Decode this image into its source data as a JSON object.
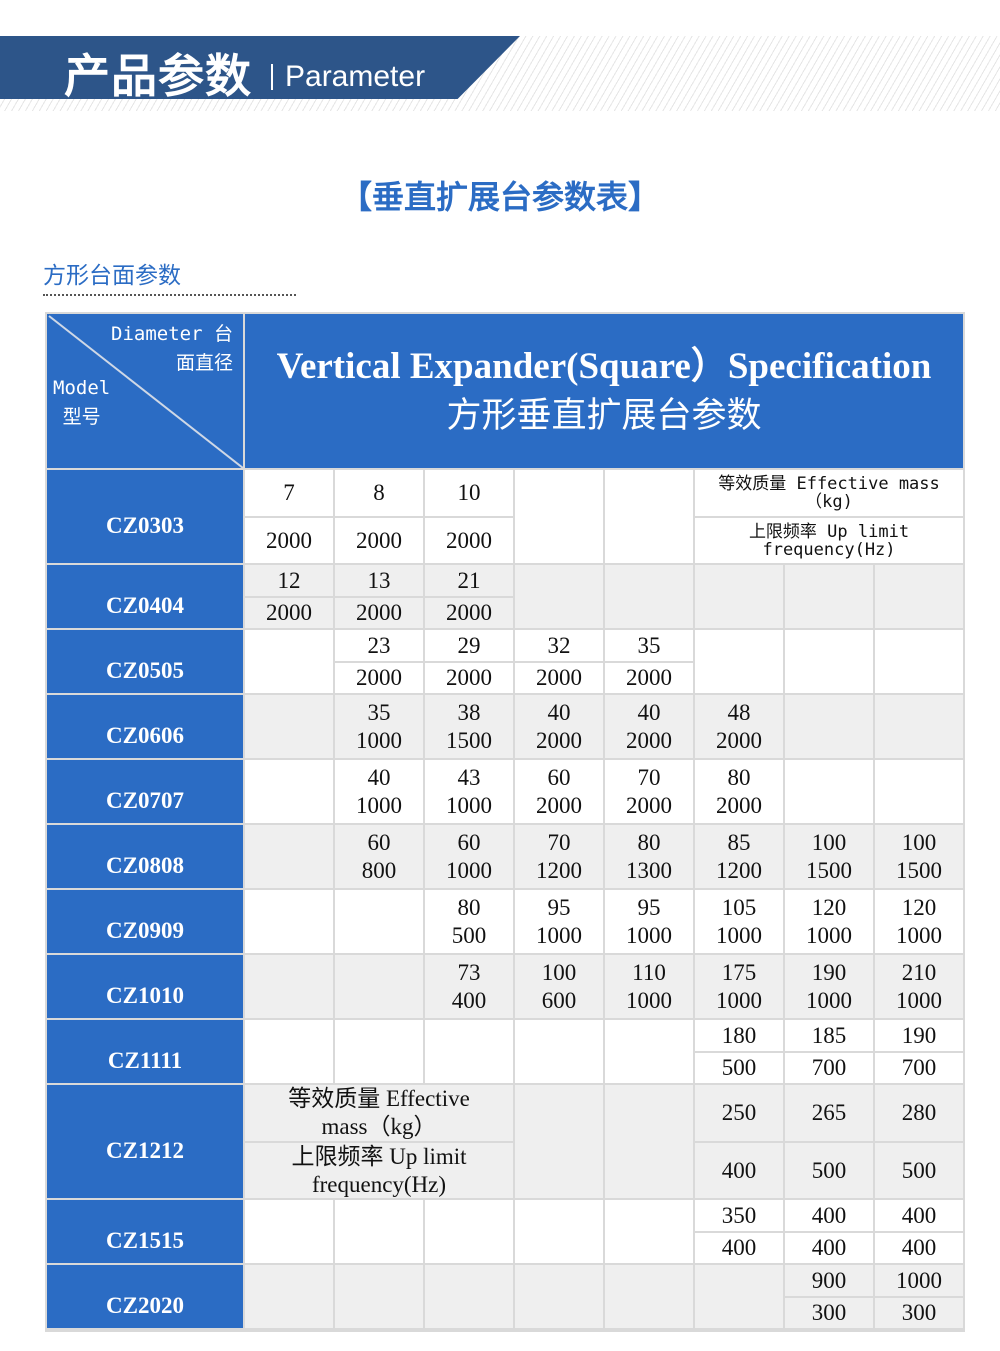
{
  "banner": {
    "title_cn": "产品参数",
    "title_en": "Parameter"
  },
  "title": "【垂直扩展台参数表】",
  "subtitle": "方形台面参数",
  "table": {
    "corner": {
      "diameter": "Diameter 台",
      "diameter2": "面直径",
      "model": "Model",
      "model2": "型号"
    },
    "heading_en": "Vertical Expander(Square）Specification",
    "heading_cn": "方形垂直扩展台参数",
    "legend": {
      "mass": "等效质量 Effective mass（kg）",
      "freq": "上限频率 Up limit frequency(Hz)"
    },
    "legend_small": {
      "mass": "等效质量 Effective mass（kg)",
      "freq": "上限频率 Up limit frequency(Hz)"
    },
    "rows": [
      {
        "model": "CZ0303",
        "split": true,
        "cells": [
          [
            "7",
            "2000"
          ],
          [
            "8",
            "2000"
          ],
          [
            "10",
            "2000"
          ],
          null,
          null,
          "legend"
        ]
      },
      {
        "model": "CZ0404",
        "split": true,
        "cells": [
          [
            "12",
            "2000"
          ],
          [
            "13",
            "2000"
          ],
          [
            "21",
            "2000"
          ],
          null,
          null,
          null,
          null,
          null
        ]
      },
      {
        "model": "CZ0505",
        "split": true,
        "cells": [
          null,
          [
            "23",
            "2000"
          ],
          [
            "29",
            "2000"
          ],
          [
            "32",
            "2000"
          ],
          [
            "35",
            "2000"
          ],
          null,
          null,
          null
        ]
      },
      {
        "model": "CZ0606",
        "split": false,
        "cells": [
          null,
          [
            "35",
            "1000"
          ],
          [
            "38",
            "1500"
          ],
          [
            "40",
            "2000"
          ],
          [
            "40",
            "2000"
          ],
          [
            "48",
            "2000"
          ],
          null,
          null
        ]
      },
      {
        "model": "CZ0707",
        "split": false,
        "cells": [
          null,
          [
            "40",
            "1000"
          ],
          [
            "43",
            "1000"
          ],
          [
            "60",
            "2000"
          ],
          [
            "70",
            "2000"
          ],
          [
            "80",
            "2000"
          ],
          null,
          null
        ]
      },
      {
        "model": "CZ0808",
        "split": false,
        "cells": [
          null,
          [
            "60",
            "800"
          ],
          [
            "60",
            "1000"
          ],
          [
            "70",
            "1200"
          ],
          [
            "80",
            "1300"
          ],
          [
            "85",
            "1200"
          ],
          [
            "100",
            "1500"
          ],
          [
            "100",
            "1500"
          ]
        ]
      },
      {
        "model": "CZ0909",
        "split": false,
        "cells": [
          null,
          null,
          [
            "80",
            "500"
          ],
          [
            "95",
            "1000"
          ],
          [
            "95",
            "1000"
          ],
          [
            "105",
            "1000"
          ],
          [
            "120",
            "1000"
          ],
          [
            "120",
            "1000"
          ]
        ]
      },
      {
        "model": "CZ1010",
        "split": false,
        "cells": [
          null,
          null,
          [
            "73",
            "400"
          ],
          [
            "100",
            "600"
          ],
          [
            "110",
            "1000"
          ],
          [
            "175",
            "1000"
          ],
          [
            "190",
            "1000"
          ],
          [
            "210",
            "1000"
          ]
        ]
      },
      {
        "model": "CZ1111",
        "split": true,
        "cells": [
          null,
          null,
          null,
          null,
          null,
          [
            "180",
            "500"
          ],
          [
            "185",
            "700"
          ],
          [
            "190",
            "700"
          ]
        ]
      },
      {
        "model": "CZ1212",
        "split": true,
        "cells": [
          "legend",
          null,
          null,
          [
            "250",
            "400"
          ],
          [
            "265",
            "500"
          ],
          [
            "280",
            "500"
          ]
        ]
      },
      {
        "model": "CZ1515",
        "split": true,
        "cells": [
          null,
          null,
          null,
          null,
          null,
          [
            "350",
            "400"
          ],
          [
            "400",
            "400"
          ],
          [
            "400",
            "400"
          ]
        ]
      },
      {
        "model": "CZ2020",
        "split": true,
        "cells": [
          null,
          null,
          null,
          null,
          null,
          null,
          [
            "900",
            "300"
          ],
          [
            "1000",
            "300"
          ]
        ]
      }
    ]
  },
  "colors": {
    "banner": "#2d5589",
    "accent": "#2b6cc4",
    "row_alt": "#efefef"
  }
}
